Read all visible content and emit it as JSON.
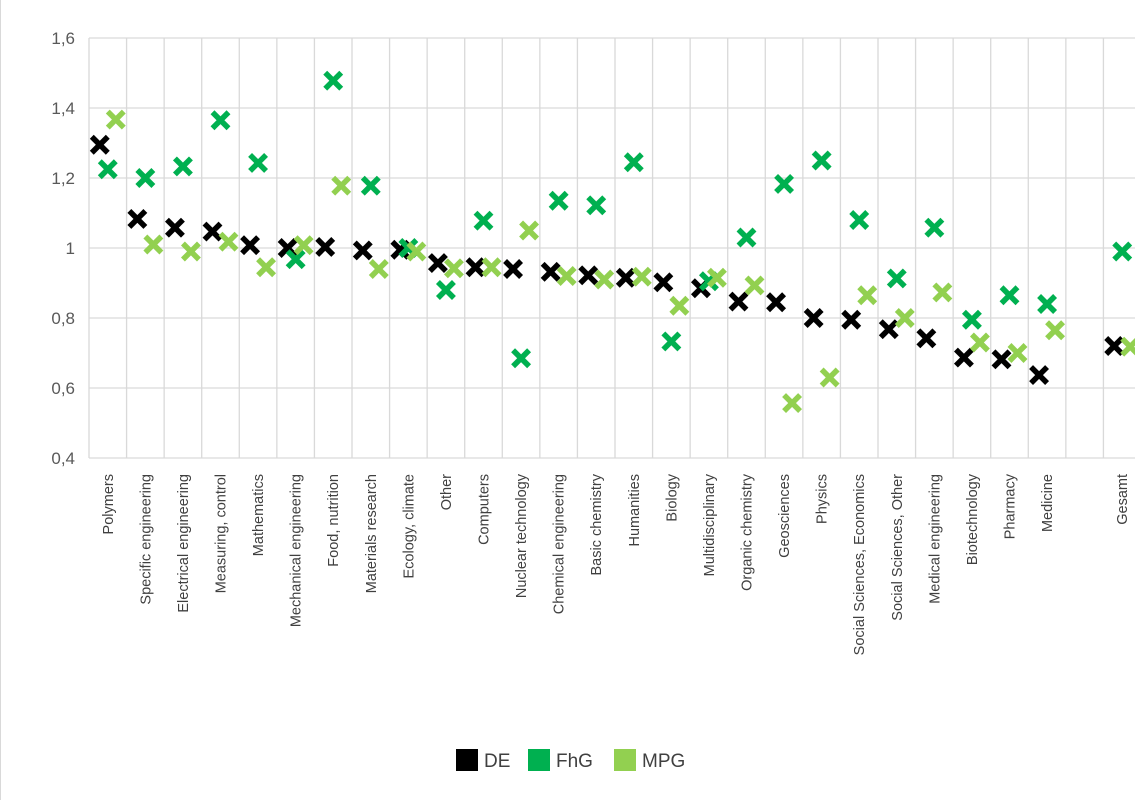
{
  "chart_data": {
    "type": "scatter",
    "title": "",
    "xlabel": "",
    "ylabel": "",
    "ylim": [
      0.4,
      1.6
    ],
    "yticks": [
      "0,4",
      "0,6",
      "0,8",
      "1",
      "1,2",
      "1,4",
      "1,6"
    ],
    "ytick_values": [
      0.4,
      0.6,
      0.8,
      1.0,
      1.2,
      1.4,
      1.6
    ],
    "grid": "vertical and horizontal",
    "legend": "bottom-center",
    "marker": "x",
    "categories": [
      "Polymers",
      "Specific engineering",
      "Electrical engineering",
      "Measuring, control",
      "Mathematics",
      "Mechanical engineering",
      "Food, nutrition",
      "Materials research",
      "Ecology, climate",
      "Other",
      "Computers",
      "Nuclear technology",
      "Chemical engineering",
      "Basic chemistry",
      "Humanities",
      "Biology",
      "Multidisciplinary",
      "Organic chemistry",
      "Geosciences",
      "Physics",
      "Social Sciences, Economics",
      "Social Sciences, Other",
      "Medical engineering",
      "Biotechnology",
      "Pharmacy",
      "Medicine",
      "",
      "Gesamt"
    ],
    "series": [
      {
        "name": "DE",
        "color": "#000000",
        "values": [
          1.295,
          1.083,
          1.058,
          1.047,
          1.008,
          1.0,
          1.003,
          0.993,
          0.995,
          0.957,
          0.945,
          0.94,
          0.932,
          0.922,
          0.915,
          0.902,
          0.885,
          0.847,
          0.845,
          0.8,
          0.795,
          0.768,
          0.742,
          0.687,
          0.682,
          0.637,
          null,
          0.72
        ]
      },
      {
        "name": "FhG",
        "color": "#00B050",
        "values": [
          1.225,
          1.2,
          1.233,
          1.365,
          1.243,
          0.968,
          1.478,
          1.178,
          1.0,
          0.88,
          1.078,
          0.685,
          1.135,
          1.122,
          1.245,
          0.733,
          0.905,
          1.03,
          1.183,
          1.25,
          1.08,
          0.913,
          1.058,
          0.795,
          0.865,
          0.84,
          null,
          0.99
        ]
      },
      {
        "name": "MPG",
        "color": "#92D050",
        "values": [
          1.367,
          1.01,
          0.99,
          1.018,
          0.945,
          1.008,
          1.178,
          0.94,
          0.99,
          0.942,
          0.945,
          1.05,
          0.92,
          0.91,
          0.918,
          0.835,
          0.915,
          0.893,
          0.557,
          0.63,
          0.865,
          0.8,
          0.873,
          0.73,
          0.7,
          0.765,
          null,
          0.718
        ]
      }
    ]
  }
}
